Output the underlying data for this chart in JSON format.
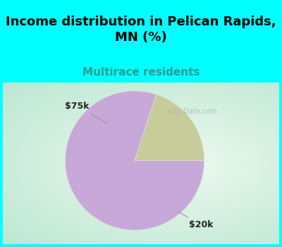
{
  "title": "Income distribution in Pelican Rapids,\nMN (%)",
  "subtitle": "Multirace residents",
  "title_fontsize": 13,
  "subtitle_fontsize": 11,
  "title_color": "#000000",
  "subtitle_color": "#2a9d8f",
  "slices": [
    {
      "label": "$20k",
      "value": 80,
      "color": "#c8a8d8"
    },
    {
      "label": "$75k",
      "value": 20,
      "color": "#c8cc9a"
    }
  ],
  "background_top": "#00ffff",
  "label_fontsize": 9,
  "startangle": 72,
  "watermark": "City-Data.com"
}
